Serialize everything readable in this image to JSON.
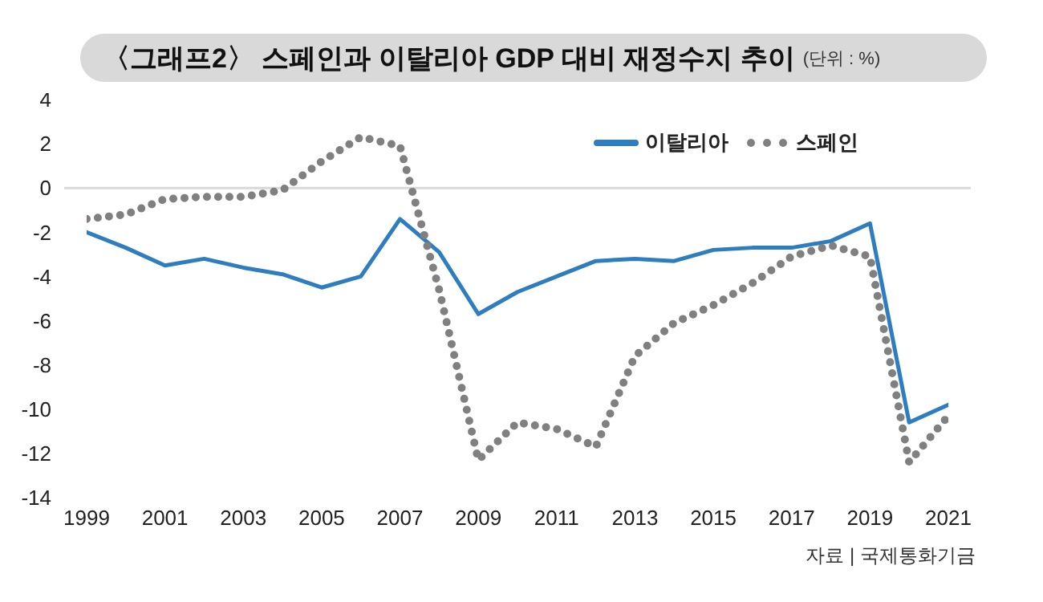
{
  "chart_data": {
    "type": "line",
    "title": "〈그래프2〉 스페인과 이탈리아 GDP 대비 재정수지 추이",
    "subtitle": "(단위 : %)",
    "annotations": [
      "자료 | 국제통화기금"
    ],
    "x": [
      1999,
      2000,
      2001,
      2002,
      2003,
      2004,
      2005,
      2006,
      2007,
      2008,
      2009,
      2010,
      2011,
      2012,
      2013,
      2014,
      2015,
      2016,
      2017,
      2018,
      2019,
      2020,
      2021
    ],
    "series": [
      {
        "name": "이탈리아",
        "color": "#2e7ebf",
        "line_style": "solid",
        "values": [
          -2.0,
          -2.7,
          -3.5,
          -3.2,
          -3.6,
          -3.9,
          -4.5,
          -4.0,
          -1.4,
          -2.9,
          -5.7,
          -4.7,
          -4.0,
          -3.3,
          -3.2,
          -3.3,
          -2.8,
          -2.7,
          -2.7,
          -2.4,
          -1.6,
          -10.6,
          -9.8
        ]
      },
      {
        "name": "스페인",
        "color": "#808080",
        "line_style": "dotted",
        "values": [
          -1.4,
          -1.2,
          -0.5,
          -0.4,
          -0.4,
          -0.1,
          1.2,
          2.3,
          1.9,
          -4.6,
          -12.3,
          -10.6,
          -10.9,
          -11.7,
          -7.6,
          -6.1,
          -5.3,
          -4.3,
          -3.1,
          -2.6,
          -3.1,
          -12.4,
          -10.3
        ]
      }
    ],
    "xlim": [
      1999,
      2021
    ],
    "xticks": [
      1999,
      2001,
      2003,
      2005,
      2007,
      2009,
      2011,
      2013,
      2015,
      2017,
      2019,
      2021
    ],
    "ylim": [
      -14,
      4
    ],
    "yticks": [
      -14,
      -12,
      -10,
      -8,
      -6,
      -4,
      -2,
      0,
      2,
      4
    ],
    "ref_lines": [
      {
        "axis": "y",
        "value": 0,
        "color": "#d9d9d9"
      }
    ],
    "grid": false,
    "legend": "top right",
    "marker": "none"
  }
}
